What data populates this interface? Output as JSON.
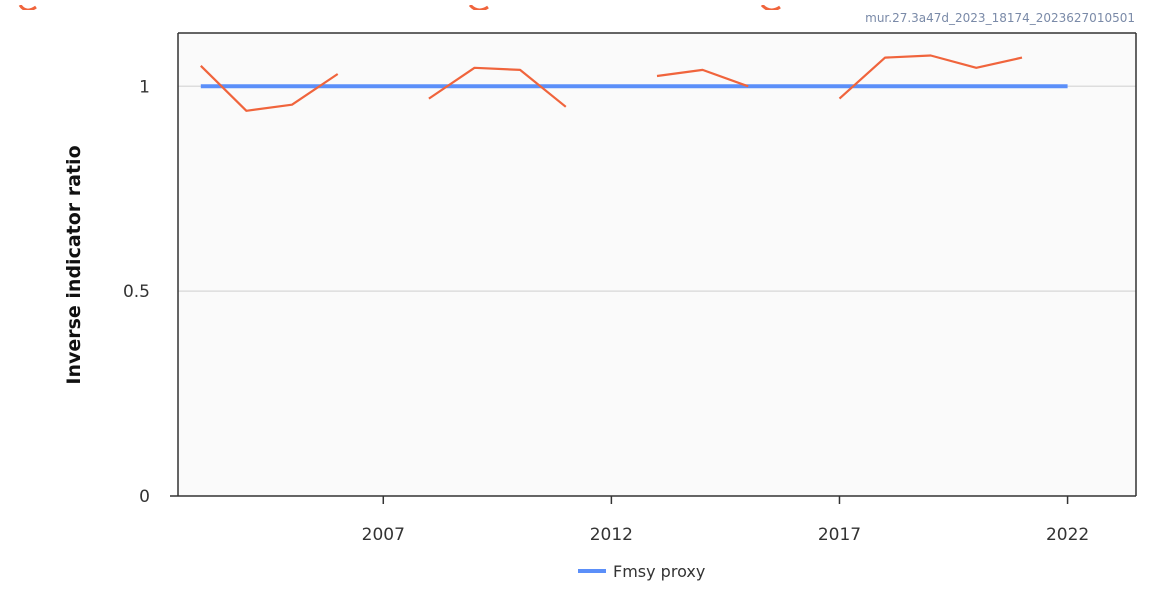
{
  "colors": {
    "series_line": "#f0643c",
    "reference_line": "#5b8ff9",
    "plot_background": "#fafafa",
    "gridline": "#dddddd",
    "watermark": "#7a8aa8"
  },
  "chart_data": {
    "type": "line",
    "title": "",
    "watermark": "mur.27.3a47d_2023_18174_2023627010501",
    "xlabel": "",
    "ylabel": "Inverse indicator ratio",
    "xlim": [
      2002.5,
      2023.5
    ],
    "ylim": [
      0,
      1.13
    ],
    "x_ticks": [
      2007,
      2012,
      2017,
      2022
    ],
    "x_tick_labels": [
      "2007",
      "2012",
      "2017",
      "2022"
    ],
    "y_ticks": [
      0,
      0.5,
      1
    ],
    "y_tick_labels": [
      "0",
      "0.5",
      "1"
    ],
    "grid": "horizontal",
    "legend_position": "bottom-center",
    "series": [
      {
        "name": "",
        "color": "#f0643c",
        "segments": [
          [
            [
              2003,
              1.05
            ],
            [
              2004,
              0.94
            ],
            [
              2005,
              0.955
            ],
            [
              2006,
              1.03
            ]
          ],
          [
            [
              2008,
              0.97
            ],
            [
              2009,
              1.045
            ],
            [
              2010,
              1.04
            ],
            [
              2011,
              0.95
            ]
          ],
          [
            [
              2013,
              1.025
            ],
            [
              2014,
              1.04
            ],
            [
              2015,
              1.0
            ]
          ],
          [
            [
              2017,
              0.97
            ],
            [
              2018,
              1.07
            ],
            [
              2019,
              1.075
            ],
            [
              2020,
              1.045
            ],
            [
              2021,
              1.07
            ]
          ]
        ]
      },
      {
        "name": "Fmsy proxy",
        "color": "#5b8ff9",
        "x": [
          2003,
          2022
        ],
        "values": [
          1.0,
          1.0
        ]
      }
    ]
  }
}
